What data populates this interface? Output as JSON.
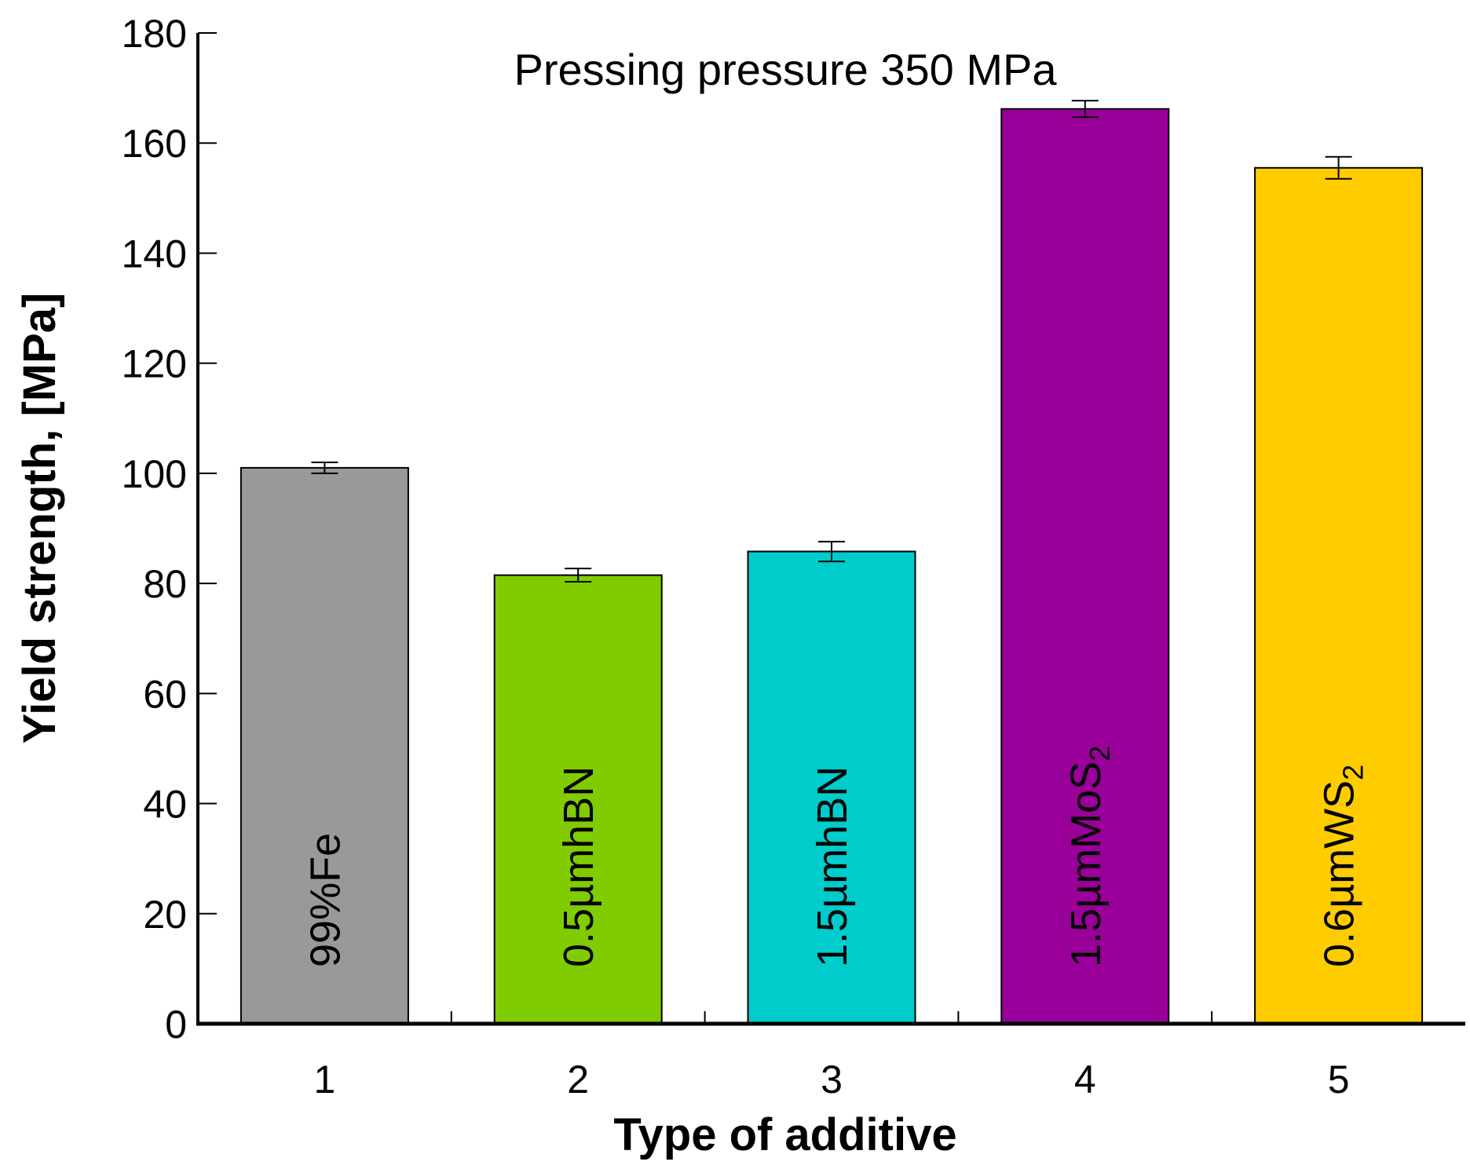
{
  "chart_data": {
    "type": "bar",
    "title": "Pressing pressure 350 MPa",
    "xlabel": "Type of additive",
    "ylabel": "Yield strength, [MPa]",
    "ylim": [
      0,
      180
    ],
    "yticks": [
      0,
      20,
      40,
      60,
      80,
      100,
      120,
      140,
      160,
      180
    ],
    "categories": [
      "1",
      "2",
      "3",
      "4",
      "5"
    ],
    "bar_labels": [
      {
        "text": "99%Fe",
        "sub": ""
      },
      {
        "text": "0.5µmhBN",
        "sub": ""
      },
      {
        "text": "1.5µmhBN",
        "sub": ""
      },
      {
        "text": "1.5µmMoS",
        "sub": "2"
      },
      {
        "text": "0.6µmWS",
        "sub": "2"
      }
    ],
    "values": [
      101,
      81.5,
      85.8,
      166.2,
      155.5
    ],
    "errors": [
      1.0,
      1.2,
      1.8,
      1.5,
      2.0
    ],
    "colors": [
      "#999999",
      "#80cc00",
      "#00cccc",
      "#990099",
      "#ffcc00"
    ],
    "grid": false
  }
}
